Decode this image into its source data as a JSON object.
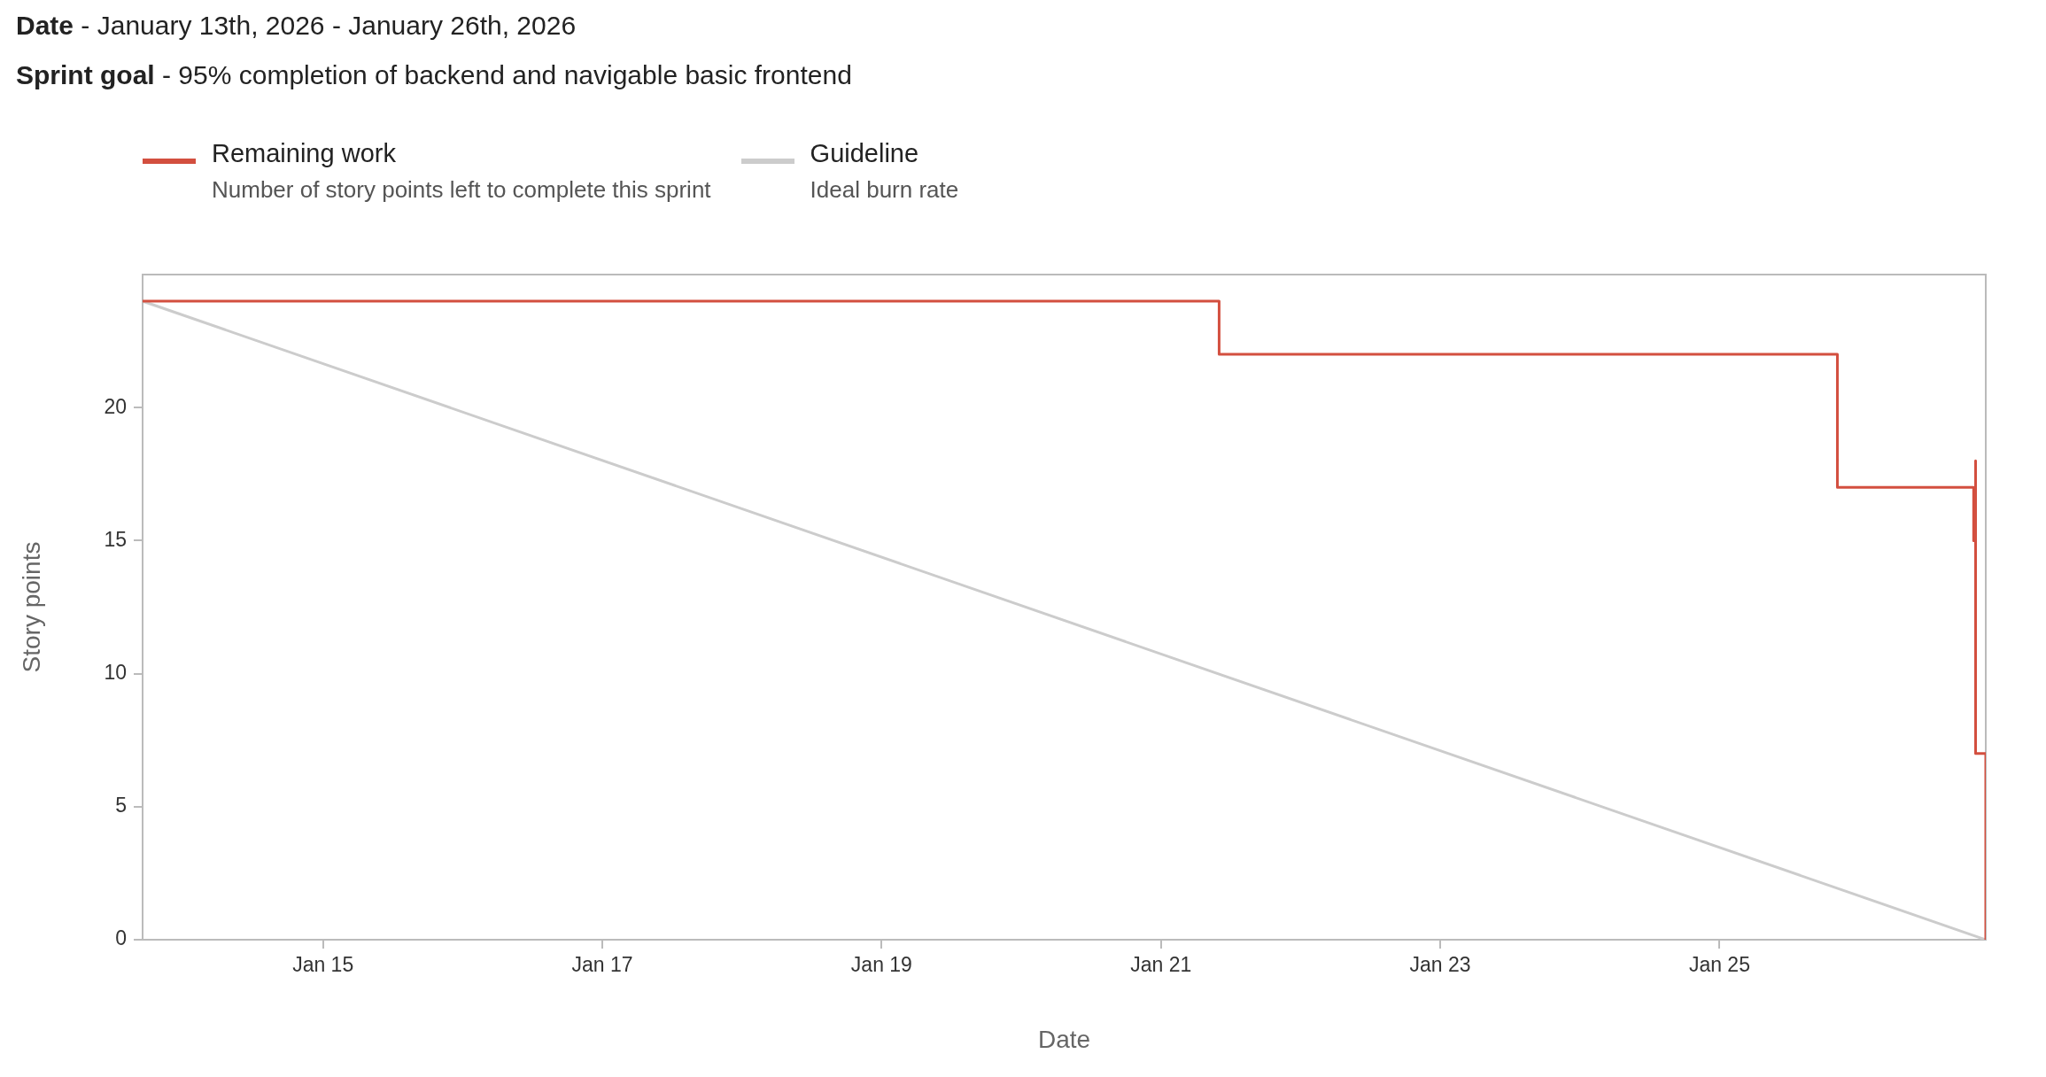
{
  "chart_data": {
    "type": "step",
    "title": "Date - January 13th, 2026 - January 26th, 2026",
    "subtitle": "Sprint goal - 95% completion of backend and navigable basic frontend",
    "xlabel": "Date",
    "ylabel": "Story points",
    "series": [
      {
        "name": "Remaining work",
        "color": "#d34f3f",
        "x": [
          "2026-01-13T17:00",
          "2026-01-21T10:00",
          "2026-01-25T20:15",
          "2026-01-26T19:40",
          "2026-01-26T20:00",
          "2026-01-26T20:00",
          "2026-01-26T21:45"
        ],
        "values": [
          24,
          22,
          17,
          15,
          18,
          7,
          0
        ]
      },
      {
        "name": "Guideline",
        "type": "line",
        "color": "#cccccc",
        "x": [
          "2026-01-13T17:00",
          "2026-01-26T21:45"
        ],
        "values": [
          24,
          0
        ]
      }
    ],
    "annotations": [
      "Number of story points left to complete this sprint",
      "Ideal burn rate"
    ],
    "xlim": [
      "2026-01-13T17:00",
      "2026-01-26T21:45"
    ],
    "xticks": [
      {
        "value": "2026-01-15",
        "label": "Jan 15"
      },
      {
        "value": "2026-01-17",
        "label": "Jan 17"
      },
      {
        "value": "2026-01-19",
        "label": "Jan 19"
      },
      {
        "value": "2026-01-21",
        "label": "Jan 21"
      },
      {
        "value": "2026-01-23",
        "label": "Jan 23"
      },
      {
        "value": "2026-01-25",
        "label": "Jan 25"
      }
    ],
    "ylim": [
      0,
      25
    ],
    "yticks": [
      0,
      5,
      10,
      15,
      20
    ],
    "legend": "top left",
    "marker": "none"
  }
}
